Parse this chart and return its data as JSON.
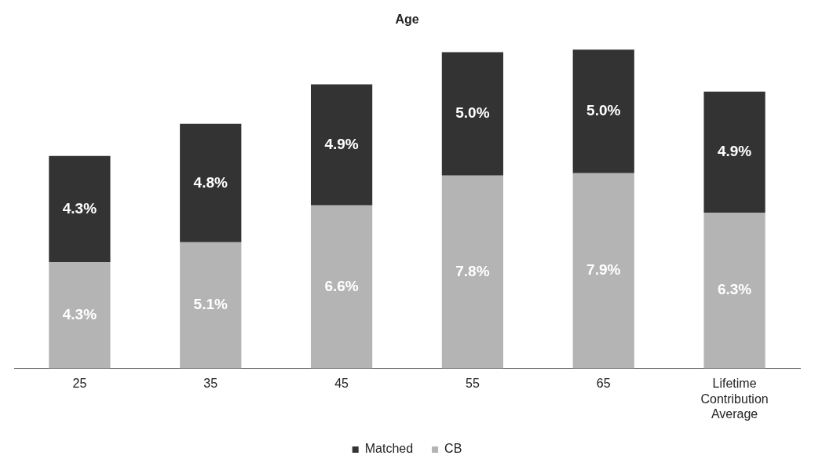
{
  "chart_data": {
    "type": "bar",
    "title": "Age",
    "categories": [
      "25",
      "35",
      "45",
      "55",
      "65",
      "Lifetime Contribution Average"
    ],
    "stacked": true,
    "legend": "bottom",
    "grid": false,
    "series": [
      {
        "name": "CB",
        "color": "#b4b4b4",
        "values": [
          4.3,
          5.1,
          6.6,
          7.8,
          7.9,
          6.3
        ],
        "value_labels": [
          "4.3%",
          "5.1%",
          "6.6%",
          "7.8%",
          "7.9%",
          "6.3%"
        ]
      },
      {
        "name": "Matched",
        "color": "#333333",
        "values": [
          4.3,
          4.8,
          4.9,
          5.0,
          5.0,
          4.9
        ],
        "value_labels": [
          "4.3%",
          "4.8%",
          "4.9%",
          "5.0%",
          "5.0%",
          "4.9%"
        ]
      }
    ]
  }
}
